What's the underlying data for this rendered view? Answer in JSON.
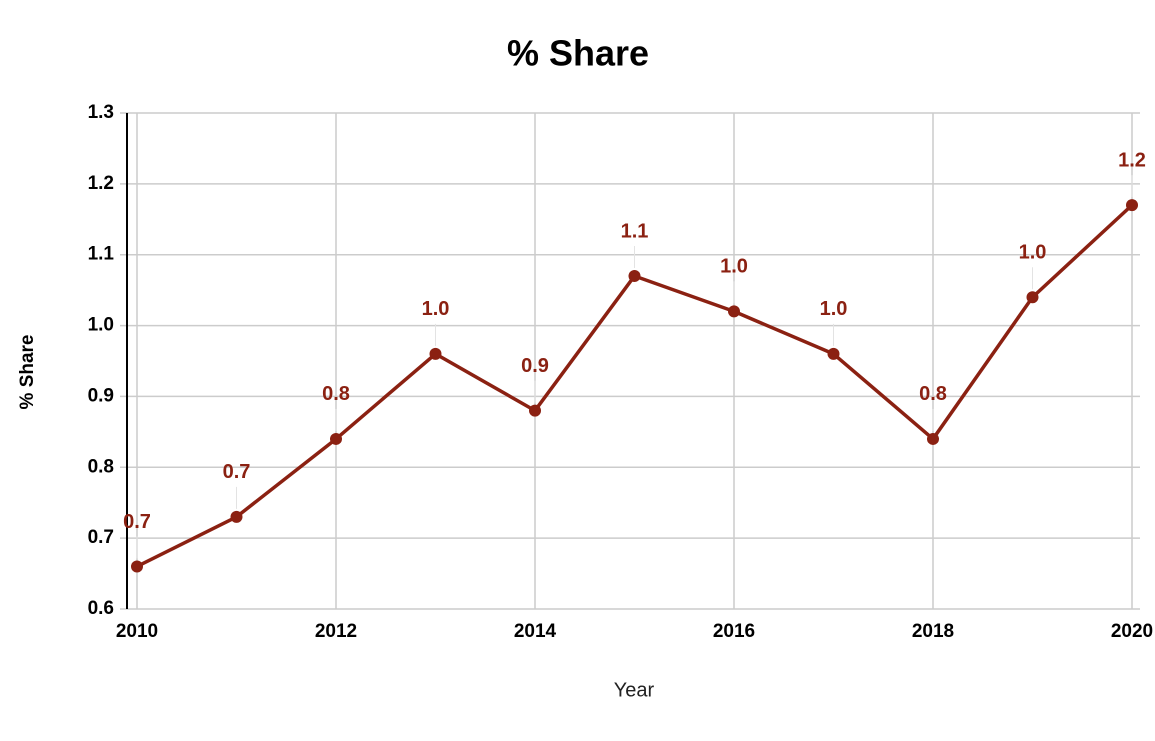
{
  "chart_data": {
    "type": "line",
    "title": "% Share",
    "x_label": "Year",
    "y_label": "% Share",
    "x": [
      2010,
      2011,
      2012,
      2013,
      2014,
      2015,
      2016,
      2017,
      2018,
      2019,
      2020
    ],
    "series": [
      {
        "name": "% Share",
        "color": "#8b2112",
        "values": [
          0.66,
          0.73,
          0.84,
          0.96,
          0.88,
          1.07,
          1.02,
          0.96,
          0.84,
          1.04,
          1.17
        ],
        "value_labels": [
          "0.7",
          "0.7",
          "0.8",
          "1.0",
          "0.9",
          "1.1",
          "1.0",
          "1.0",
          "0.8",
          "1.0",
          "1.2"
        ]
      }
    ],
    "xlim": [
      2010,
      2020
    ],
    "xticks": [
      2010,
      2012,
      2014,
      2016,
      2018,
      2020
    ],
    "ylim": [
      0.6,
      1.3
    ],
    "yticks": [
      0.6,
      0.7,
      0.8,
      0.9,
      {
        "value": 1,
        "label": "1.0"
      },
      1.1,
      1.2,
      1.3
    ],
    "grid": true
  }
}
